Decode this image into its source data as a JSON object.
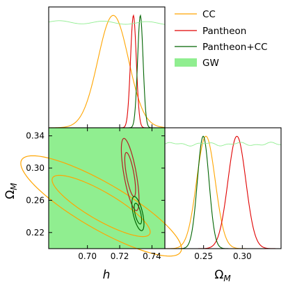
{
  "chart_data": [
    {
      "panel": "h-posterior",
      "type": "line",
      "xlabel": "",
      "ylabel": "",
      "xlim": [
        0.676,
        0.748
      ],
      "series": [
        {
          "name": "CC",
          "color": "#FFA500",
          "kind": "gaussian",
          "mean": 0.716,
          "sigma": 0.0095,
          "height": 0.93
        },
        {
          "name": "Pantheon",
          "color": "#E00000",
          "kind": "gaussian",
          "mean": 0.7285,
          "sigma": 0.0018,
          "height": 0.93
        },
        {
          "name": "Pantheon+CC",
          "color": "#006400",
          "kind": "gaussian",
          "mean": 0.7328,
          "sigma": 0.0017,
          "height": 0.93
        },
        {
          "name": "GW",
          "color": "#90EE90",
          "kind": "flat",
          "level": 0.875
        }
      ]
    },
    {
      "panel": "h-OmegaM-contours",
      "type": "scatter",
      "xlabel": "h",
      "ylabel": "ΩM",
      "xlim": [
        0.676,
        0.748
      ],
      "ylim": [
        0.2,
        0.35
      ],
      "xticks": [
        "0.70",
        "0.72",
        "0.74"
      ],
      "yticks": [
        "0.22",
        "0.26",
        "0.30",
        "0.34"
      ],
      "background_region": {
        "name": "GW",
        "color": "#90EE90"
      },
      "contours": [
        {
          "name": "CC",
          "color": "#FFA500",
          "center": [
            0.7085,
            0.253
          ],
          "sx": 0.02,
          "sy": 0.025,
          "rho": -0.85
        },
        {
          "name": "Pantheon",
          "color": "#B22222",
          "center": [
            0.7265,
            0.292
          ],
          "sx": 0.0022,
          "sy": 0.018,
          "rho": -0.7
        },
        {
          "name": "Pantheon+CC",
          "color": "#006400",
          "center": [
            0.7313,
            0.2435
          ],
          "sx": 0.0015,
          "sy": 0.0085,
          "rho": -0.6
        }
      ]
    },
    {
      "panel": "OmegaM-posterior",
      "type": "line",
      "xlabel": "ΩM",
      "xlim": [
        0.2,
        0.35
      ],
      "xticks": [
        "0.25",
        "0.30"
      ],
      "series": [
        {
          "name": "CC",
          "color": "#FFA500",
          "kind": "gaussian",
          "mean": 0.253,
          "sigma": 0.012,
          "height": 0.93
        },
        {
          "name": "Pantheon",
          "color": "#E00000",
          "kind": "gaussian",
          "mean": 0.293,
          "sigma": 0.0115,
          "height": 0.93
        },
        {
          "name": "Pantheon+CC",
          "color": "#006400",
          "kind": "gaussian",
          "mean": 0.2495,
          "sigma": 0.0075,
          "height": 0.93
        },
        {
          "name": "GW",
          "color": "#90EE90",
          "kind": "flat",
          "level": 0.865
        }
      ]
    }
  ],
  "legend": {
    "placement": "top-right",
    "entries": [
      {
        "label": "CC",
        "color": "#FFA500",
        "marker": "line"
      },
      {
        "label": "Pantheon",
        "color": "#E00000",
        "marker": "line"
      },
      {
        "label": "Pantheon+CC",
        "color": "#006400",
        "marker": "line"
      },
      {
        "label": "GW",
        "color": "#90EE90",
        "marker": "patch"
      }
    ]
  }
}
